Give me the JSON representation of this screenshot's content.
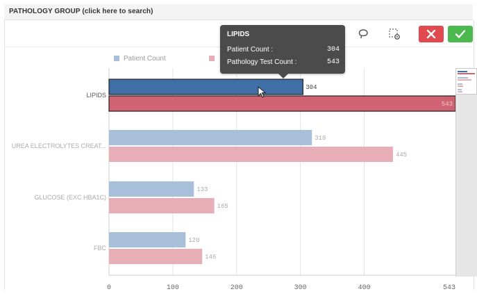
{
  "header": {
    "title": "PATHOLOGY GROUP (click here to search)"
  },
  "toolbar": {
    "lasso_icon": "lasso-icon",
    "select_icon": "selection-settings-icon",
    "cancel_icon": "close-icon",
    "confirm_icon": "check-icon"
  },
  "tooltip": {
    "title": "LIPIDS",
    "rows": [
      {
        "label": "Patient Count :",
        "value": "304"
      },
      {
        "label": "Pathology Test Count :",
        "value": "543"
      }
    ]
  },
  "colors": {
    "patient": "#a8bfd9",
    "patient_selected": "#3f6fa6",
    "pathology": "#e7aeb8",
    "pathology_selected": "#cf6372"
  },
  "chart_data": {
    "type": "bar",
    "orientation": "horizontal",
    "categories": [
      "LIPIDS",
      "UREA ELECTROLYTES CREAT...",
      "GLUCOSE (EXC HBA1C)",
      "FBC"
    ],
    "series": [
      {
        "name": "Patient Count",
        "values": [
          304,
          318,
          133,
          120
        ]
      },
      {
        "name": "Pathology Test Count",
        "values": [
          543,
          445,
          165,
          146
        ]
      }
    ],
    "data_labels": [
      [
        "304",
        "318",
        "133",
        "120"
      ],
      [
        "543",
        "445",
        "165",
        "146"
      ]
    ],
    "highlighted_category": "LIPIDS",
    "xlim": [
      0,
      543
    ],
    "xticks": [
      0,
      100,
      200,
      300,
      400,
      543
    ],
    "grid": true,
    "legend": "top",
    "legend_visible_entries": [
      "Patient Count"
    ]
  }
}
